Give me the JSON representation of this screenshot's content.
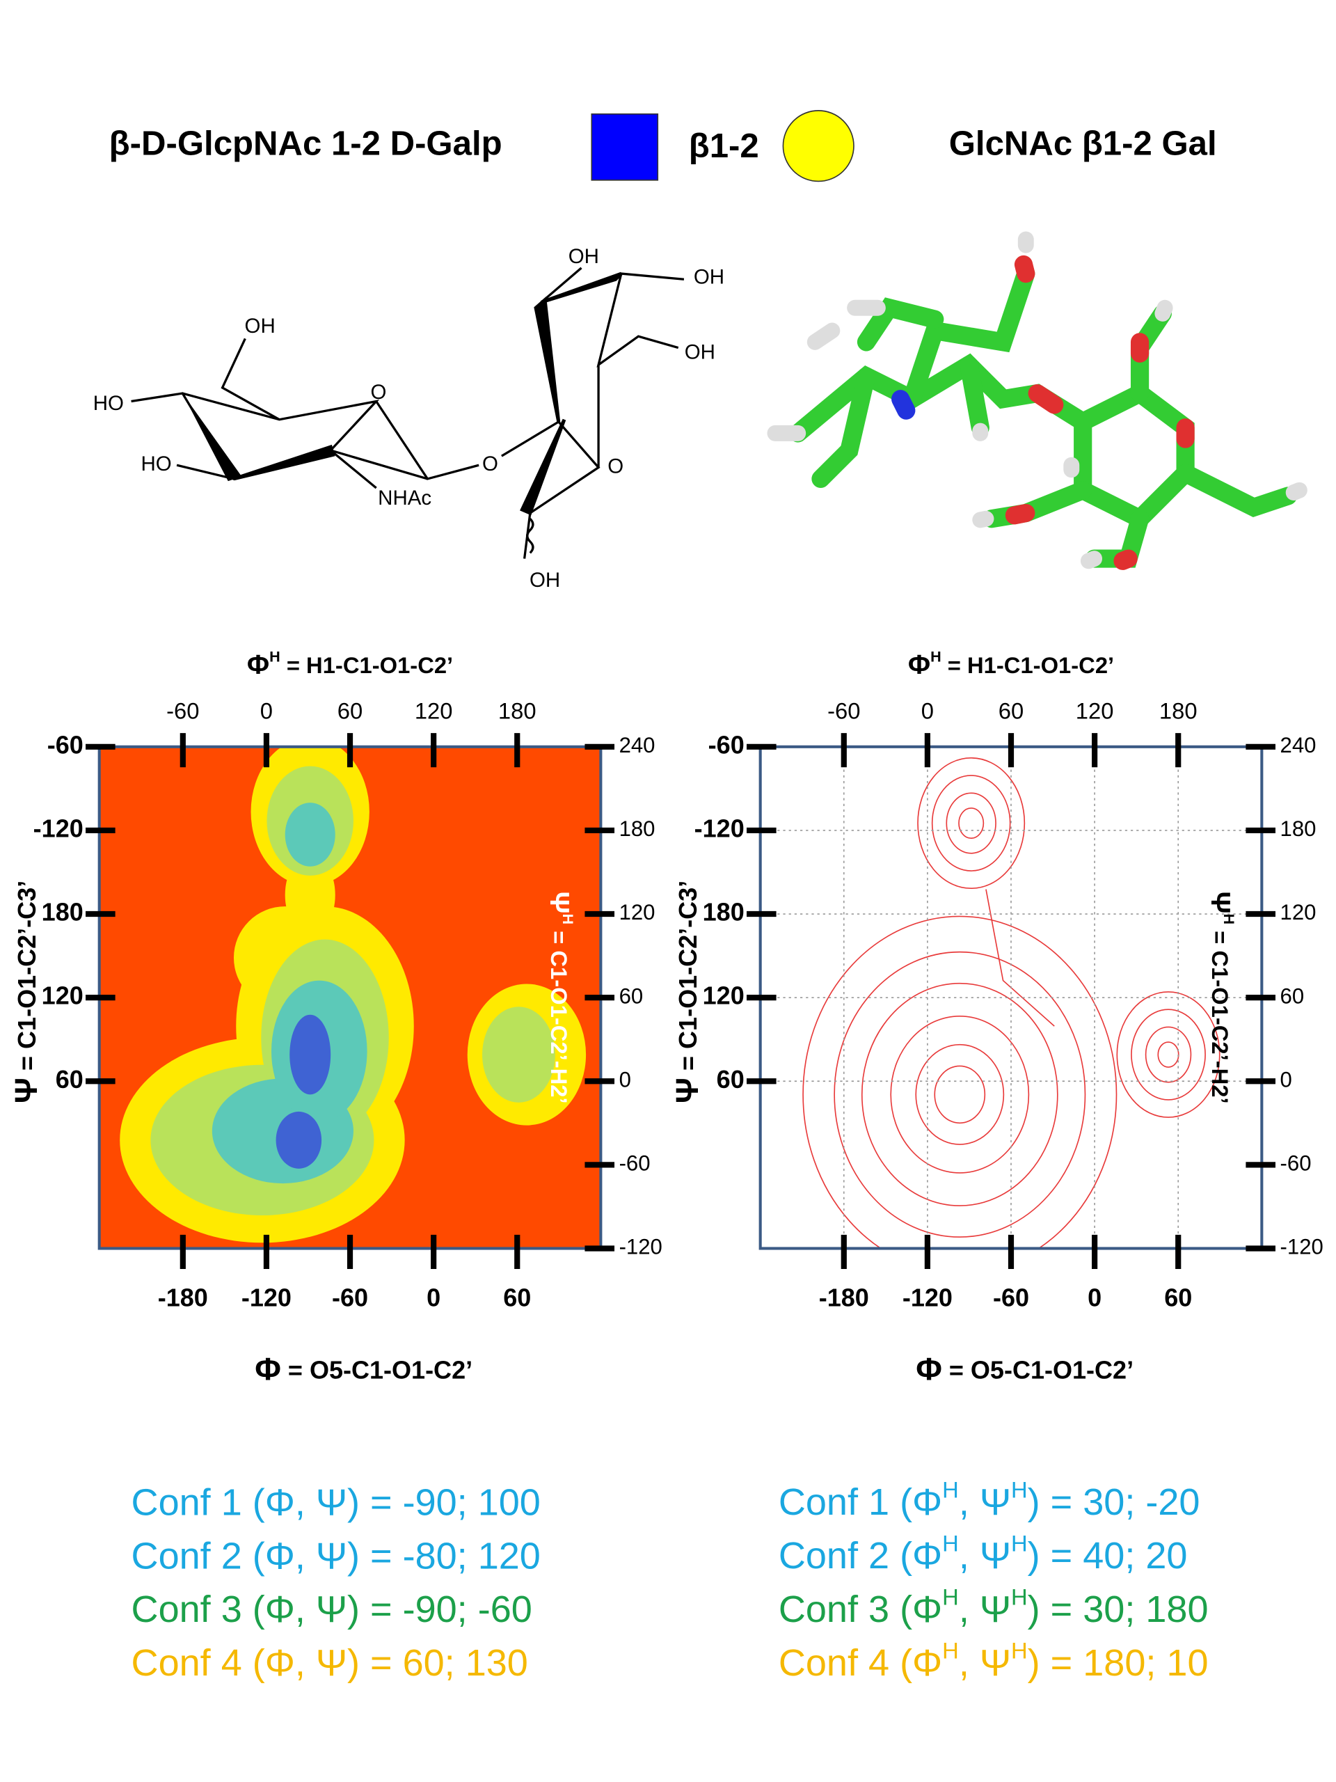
{
  "header": {
    "left": "β-D-GlcpNAc 1-2 D-Galp",
    "linkage": "β1-2",
    "right": "GlcNAc β1-2 Gal"
  },
  "structure": {
    "labels": [
      "OH",
      "HO",
      "HO",
      "O",
      "NHAc",
      "O",
      "OH",
      "OH",
      "OH",
      "O",
      "OH"
    ]
  },
  "chart_data": [
    {
      "type": "heatmap",
      "x2label": {
        "symbol": "Φ",
        "sup": "H",
        "text": " = H1-C1-O1-C2’"
      },
      "xlabel": {
        "symbol": "Φ",
        "text": " = O5-C1-O1-C2’"
      },
      "ylabel": {
        "symbol": "Ψ",
        "text": " = C1-O1-C2’-C3’"
      },
      "y2label": {
        "symbol": "Ψ",
        "sup": "H",
        "text": " = C1-O1-C2’-H2’"
      },
      "xlim": [
        -240,
        120
      ],
      "xticks": [
        -180,
        -120,
        -60,
        0,
        60
      ],
      "x2lim": [
        -120,
        240
      ],
      "x2ticks": [
        -60,
        0,
        60,
        120,
        180
      ],
      "ylim": [
        -60,
        300
      ],
      "yticks": [
        60,
        120,
        180,
        {
          "value": 240,
          "label": "-120"
        },
        {
          "value": 300,
          "label": "-60"
        }
      ],
      "y2lim": [
        -120,
        240
      ],
      "y2ticks": [
        -120,
        -60,
        0,
        60,
        120,
        180,
        240
      ],
      "grid": false
    },
    {
      "type": "contour",
      "x2label": {
        "symbol": "Φ",
        "sup": "H",
        "text": " = H1-C1-O1-C2’"
      },
      "xlabel": {
        "symbol": "Φ",
        "text": " = O5-C1-O1-C2’"
      },
      "ylabel": {
        "symbol": "Ψ",
        "text": " = C1-O1-C2’-C3’"
      },
      "y2label": {
        "symbol": "Ψ",
        "sup": "H",
        "text": " = C1-O1-C2’-H2’"
      },
      "xlim": [
        -240,
        120
      ],
      "xticks": [
        -180,
        -120,
        -60,
        0,
        60
      ],
      "x2lim": [
        -120,
        240
      ],
      "x2ticks": [
        -60,
        0,
        60,
        120,
        180
      ],
      "ylim": [
        -60,
        300
      ],
      "yticks": [
        60,
        120,
        180,
        {
          "value": 240,
          "label": "-120"
        },
        {
          "value": 300,
          "label": "-60"
        }
      ],
      "y2lim": [
        -120,
        240
      ],
      "y2ticks": [
        -120,
        -60,
        0,
        60,
        120,
        180,
        240
      ],
      "grid": true
    }
  ],
  "conformations": {
    "left": [
      {
        "color": "#1aa7e0",
        "text": "Conf 1 (Φ, Ψ) = -90; 100"
      },
      {
        "color": "#1aa7e0",
        "text": "Conf 2 (Φ, Ψ) = -80; 120"
      },
      {
        "color": "#1ca04a",
        "text": "Conf 3 (Φ, Ψ) =  -90; -60"
      },
      {
        "color": "#f5b800",
        "text": "Conf 4 (Φ, Ψ) =  60; 130"
      }
    ],
    "right": [
      {
        "color": "#1aa7e0",
        "parts": [
          "Conf 1 (Φ",
          "H",
          ", Ψ",
          "H",
          ") = 30; -20"
        ]
      },
      {
        "color": "#1aa7e0",
        "parts": [
          "Conf 2 (Φ",
          "H",
          ", Ψ",
          "H",
          ") = 40; 20"
        ]
      },
      {
        "color": "#1ca04a",
        "parts": [
          "Conf 3 (Φ",
          "H",
          ", Ψ",
          "H",
          ") = 30; 180"
        ]
      },
      {
        "color": "#f5b800",
        "parts": [
          "Conf 4 (Φ",
          "H",
          ", Ψ",
          "H",
          ") = 180; 10"
        ]
      }
    ]
  }
}
